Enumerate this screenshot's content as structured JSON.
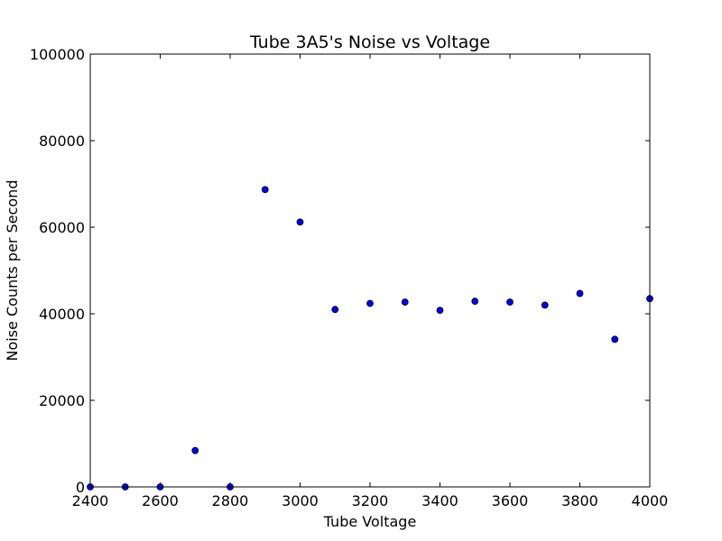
{
  "chart_data": {
    "type": "scatter",
    "title": "Tube 3A5's Noise vs Voltage",
    "xlabel": "Tube Voltage",
    "ylabel": "Noise Counts per Second",
    "xlim": [
      2400,
      4000
    ],
    "ylim": [
      0,
      100000
    ],
    "xticks": [
      2400,
      2600,
      2800,
      3000,
      3200,
      3400,
      3600,
      3800,
      4000
    ],
    "yticks": [
      0,
      20000,
      40000,
      60000,
      80000,
      100000
    ],
    "grid": false,
    "marker_color": "#0000ff",
    "marker_edge_color": "#000000",
    "points": [
      {
        "x": 2400,
        "y": 0
      },
      {
        "x": 2500,
        "y": 0
      },
      {
        "x": 2600,
        "y": 0
      },
      {
        "x": 2700,
        "y": 8400
      },
      {
        "x": 2800,
        "y": 0
      },
      {
        "x": 2900,
        "y": 68700
      },
      {
        "x": 3000,
        "y": 61200
      },
      {
        "x": 3100,
        "y": 41000
      },
      {
        "x": 3200,
        "y": 42400
      },
      {
        "x": 3300,
        "y": 42700
      },
      {
        "x": 3400,
        "y": 40800
      },
      {
        "x": 3500,
        "y": 42900
      },
      {
        "x": 3600,
        "y": 42700
      },
      {
        "x": 3700,
        "y": 42000
      },
      {
        "x": 3800,
        "y": 44700
      },
      {
        "x": 3900,
        "y": 34100
      },
      {
        "x": 4000,
        "y": 43500
      }
    ]
  }
}
